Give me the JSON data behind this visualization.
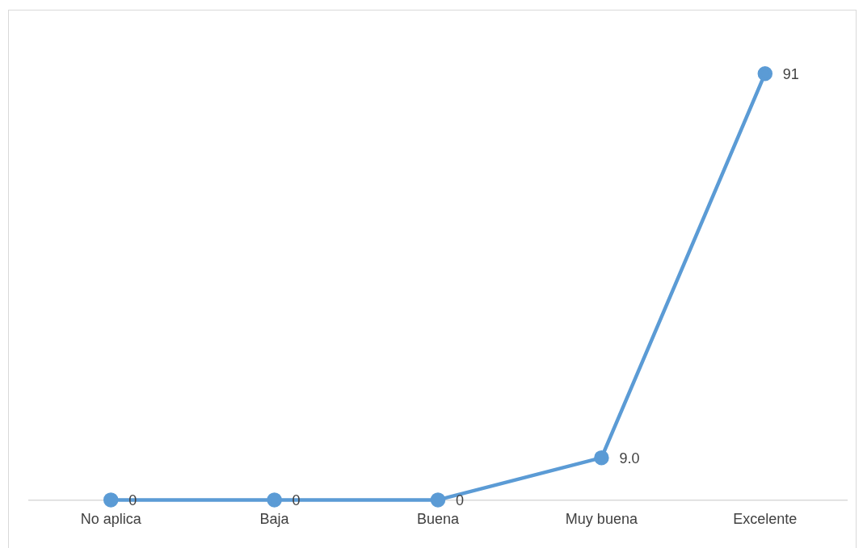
{
  "chart_data": {
    "type": "line",
    "categories": [
      "No aplica",
      "Baja",
      "Buena",
      "Muy buena",
      "Excelente"
    ],
    "series": [
      {
        "color": "#5b9bd5",
        "values": [
          0,
          0,
          0,
          9.0,
          91
        ],
        "value_labels": [
          "0",
          "0",
          "0",
          "9.0",
          "91"
        ]
      }
    ],
    "grid": false,
    "legend": false,
    "marker": "circle",
    "line_style": "solid",
    "tick_labels": "x"
  }
}
